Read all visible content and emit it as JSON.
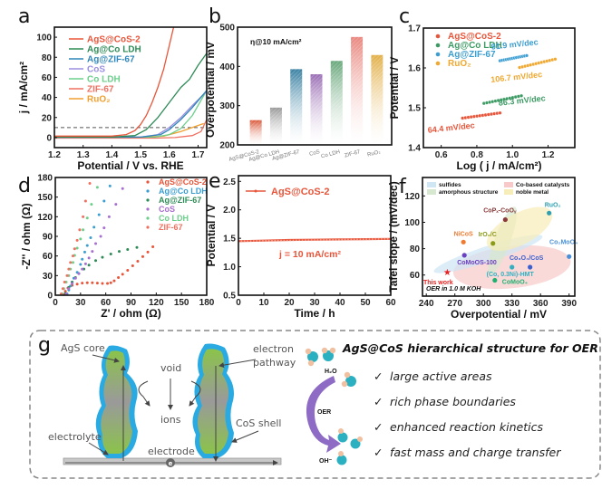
{
  "chart_data": [
    {
      "panel": "a",
      "type": "line",
      "xlabel": "Potential / V vs. RHE",
      "ylabel": "j / mA/cm²",
      "xlim": [
        1.2,
        1.73
      ],
      "ylim": [
        -10,
        110
      ],
      "xticks": [
        1.2,
        1.3,
        1.4,
        1.5,
        1.6,
        1.7
      ],
      "yticks": [
        0,
        20,
        40,
        60,
        80,
        100
      ],
      "reference_line": {
        "y": 10,
        "style": "dashed"
      },
      "series": [
        {
          "name": "AgS@CoS-2",
          "color": "#e8553a",
          "points": [
            [
              1.2,
              1.5
            ],
            [
              1.3,
              1.5
            ],
            [
              1.4,
              1.5
            ],
            [
              1.45,
              3
            ],
            [
              1.48,
              7
            ],
            [
              1.5,
              13
            ],
            [
              1.52,
              22
            ],
            [
              1.54,
              35
            ],
            [
              1.56,
              50
            ],
            [
              1.58,
              68
            ],
            [
              1.6,
              92
            ],
            [
              1.615,
              110
            ]
          ]
        },
        {
          "name": "Ag@Co LDH",
          "color": "#2e8b57",
          "points": [
            [
              1.2,
              0.5
            ],
            [
              1.4,
              0.5
            ],
            [
              1.48,
              2
            ],
            [
              1.52,
              8
            ],
            [
              1.56,
              20
            ],
            [
              1.6,
              35
            ],
            [
              1.64,
              50
            ],
            [
              1.67,
              58
            ],
            [
              1.7,
              72
            ],
            [
              1.73,
              84
            ]
          ]
        },
        {
          "name": "Ag@ZIF-67",
          "color": "#2f86b8",
          "points": [
            [
              1.2,
              0.3
            ],
            [
              1.5,
              0.5
            ],
            [
              1.57,
              3
            ],
            [
              1.6,
              8
            ],
            [
              1.64,
              18
            ],
            [
              1.68,
              30
            ],
            [
              1.73,
              47
            ]
          ]
        },
        {
          "name": "CoS",
          "color": "#9a8fe0",
          "points": [
            [
              1.2,
              0.3
            ],
            [
              1.5,
              0.5
            ],
            [
              1.56,
              3
            ],
            [
              1.6,
              10
            ],
            [
              1.64,
              20
            ],
            [
              1.68,
              32
            ],
            [
              1.73,
              46
            ]
          ]
        },
        {
          "name": "Co LDH",
          "color": "#6ccf8a",
          "points": [
            [
              1.2,
              0.3
            ],
            [
              1.55,
              0.5
            ],
            [
              1.6,
              3
            ],
            [
              1.64,
              9
            ],
            [
              1.68,
              22
            ],
            [
              1.73,
              47
            ]
          ]
        },
        {
          "name": "ZIF-67",
          "color": "#f07060",
          "points": [
            [
              1.2,
              -0.5
            ],
            [
              1.55,
              -0.5
            ],
            [
              1.62,
              0
            ],
            [
              1.68,
              2
            ],
            [
              1.71,
              6
            ],
            [
              1.73,
              18
            ]
          ]
        },
        {
          "name": "RuO₂",
          "color": "#f0a030",
          "points": [
            [
              1.2,
              0.2
            ],
            [
              1.5,
              0.3
            ],
            [
              1.58,
              1.5
            ],
            [
              1.64,
              6
            ],
            [
              1.68,
              10
            ],
            [
              1.72,
              14
            ]
          ]
        }
      ]
    },
    {
      "panel": "b",
      "type": "bar",
      "annotation": "η@10 mA/cm²",
      "ylabel": "Overpotential / mV",
      "ylim": [
        200,
        500
      ],
      "yticks": [
        200,
        300,
        400,
        500
      ],
      "categories": [
        "AgS@CoS-2",
        "Ag@Co LDH",
        "Ag@ZIF-67",
        "CoS",
        "Co LDH",
        "ZIF-67",
        "RuO₂"
      ],
      "values": [
        263,
        295,
        393,
        380,
        414,
        475,
        429
      ],
      "colors": [
        "#d9583a",
        "#999999",
        "#3b82a3",
        "#9b6fb5",
        "#6aa87c",
        "#e98880",
        "#e2b04a"
      ]
    },
    {
      "panel": "c",
      "type": "scatter",
      "xlabel": "Log ( j / mA/cm²)",
      "ylabel": "Potential / V",
      "xlim": [
        0.5,
        1.35
      ],
      "ylim": [
        1.4,
        1.7
      ],
      "xticks": [
        0.6,
        0.8,
        1.0,
        1.2
      ],
      "yticks": [
        1.4,
        1.5,
        1.6,
        1.7
      ],
      "series": [
        {
          "name": "AgS@CoS-2",
          "color": "#e8553a",
          "x_range": [
            0.72,
            0.93
          ],
          "y_range": [
            1.474,
            1.487
          ],
          "slope_label": "64.4 mV/dec"
        },
        {
          "name": "Ag@Co LDH",
          "color": "#3c9a63",
          "x_range": [
            0.84,
            1.05
          ],
          "y_range": [
            1.511,
            1.53
          ],
          "slope_label": "86.3 mV/dec"
        },
        {
          "name": "Ag@ZIF-67",
          "color": "#3b9dd0",
          "x_range": [
            0.93,
            1.08
          ],
          "y_range": [
            1.618,
            1.631
          ],
          "slope_label": "91.9 mV/dec"
        },
        {
          "name": "RuO₂",
          "color": "#f0a830",
          "x_range": [
            1.04,
            1.24
          ],
          "y_range": [
            1.601,
            1.622
          ],
          "slope_label": "106.7 mV/dec"
        }
      ]
    },
    {
      "panel": "d",
      "type": "scatter",
      "xlabel": "Z' / ohm (Ω)",
      "ylabel": "-Z'' / ohm (Ω)",
      "xlim": [
        0,
        180
      ],
      "ylim": [
        0,
        180
      ],
      "xticks": [
        0,
        30,
        60,
        90,
        120,
        150,
        180
      ],
      "yticks": [
        0,
        30,
        60,
        90,
        120,
        150,
        180
      ],
      "series": [
        {
          "name": "AgS@CoS-2",
          "color": "#e8553a",
          "points": [
            [
              10,
              1
            ],
            [
              12,
              6
            ],
            [
              15,
              11
            ],
            [
              20,
              15
            ],
            [
              26,
              17
            ],
            [
              32,
              18.5
            ],
            [
              38,
              19
            ],
            [
              44,
              19
            ],
            [
              50,
              18.5
            ],
            [
              56,
              18
            ],
            [
              62,
              18
            ],
            [
              66,
              19
            ],
            [
              70,
              22
            ],
            [
              75,
              27
            ],
            [
              80,
              32
            ],
            [
              86,
              38
            ],
            [
              92,
              45
            ],
            [
              98,
              52
            ],
            [
              104,
              59
            ],
            [
              110,
              66
            ],
            [
              116,
              74
            ]
          ]
        },
        {
          "name": "Ag@Co LDH",
          "color": "#3b9dd0",
          "points": [
            [
              14,
              2
            ],
            [
              16,
              8
            ],
            [
              18,
              14
            ],
            [
              20,
              20
            ],
            [
              22,
              26
            ],
            [
              26,
              35
            ],
            [
              30,
              47
            ],
            [
              32,
              55
            ],
            [
              35,
              66
            ],
            [
              38,
              76
            ],
            [
              42,
              88
            ],
            [
              46,
              104
            ],
            [
              52,
              123
            ],
            [
              58,
              144
            ],
            [
              65,
              167
            ]
          ]
        },
        {
          "name": "Ag@ZIF-67",
          "color": "#2e8b57",
          "points": [
            [
              12,
              3
            ],
            [
              16,
              12
            ],
            [
              20,
              20
            ],
            [
              24,
              27
            ],
            [
              28,
              33
            ],
            [
              34,
              40
            ],
            [
              40,
              46
            ],
            [
              48,
              53
            ],
            [
              56,
              58
            ],
            [
              66,
              63
            ],
            [
              76,
              67
            ],
            [
              86,
              70
            ],
            [
              97,
              73
            ]
          ]
        },
        {
          "name": "CoS",
          "color": "#a86fd0",
          "points": [
            [
              13,
              2
            ],
            [
              16,
              10
            ],
            [
              20,
              18
            ],
            [
              24,
              26
            ],
            [
              28,
              33
            ],
            [
              32,
              40
            ],
            [
              36,
              48
            ],
            [
              40,
              57
            ],
            [
              44,
              67
            ],
            [
              48,
              79
            ],
            [
              54,
              90
            ],
            [
              58,
              103
            ],
            [
              64,
              120
            ],
            [
              72,
              139
            ],
            [
              80,
              163
            ]
          ]
        },
        {
          "name": "Co LDH",
          "color": "#6ccf8a",
          "points": [
            [
              8,
              2
            ],
            [
              10,
              10
            ],
            [
              13,
              20
            ],
            [
              16,
              30
            ],
            [
              18,
              40
            ],
            [
              21,
              50
            ],
            [
              23,
              61
            ],
            [
              26,
              72
            ],
            [
              30,
              86
            ],
            [
              33,
              100
            ],
            [
              38,
              118
            ],
            [
              43,
              139
            ],
            [
              50,
              165
            ]
          ]
        },
        {
          "name": "ZIF-67",
          "color": "#f07060",
          "points": [
            [
              7,
              2
            ],
            [
              9,
              10
            ],
            [
              11,
              20
            ],
            [
              14,
              30
            ],
            [
              16,
              40
            ],
            [
              18,
              50
            ],
            [
              21,
              60
            ],
            [
              23,
              71
            ],
            [
              26,
              84
            ],
            [
              29,
              100
            ],
            [
              33,
              120
            ],
            [
              36,
              144
            ],
            [
              41,
              171
            ]
          ]
        }
      ]
    },
    {
      "panel": "e",
      "type": "line",
      "xlabel": "Time / h",
      "ylabel": "Potential / V",
      "xlim": [
        0,
        60
      ],
      "ylim": [
        0.5,
        2.6
      ],
      "xticks": [
        0,
        10,
        20,
        30,
        40,
        50,
        60
      ],
      "yticks": [
        0.5,
        1.0,
        1.5,
        2.0,
        2.5
      ],
      "annotation": "j = 10 mA/cm²",
      "series": [
        {
          "name": "AgS@CoS-2",
          "color": "#e8553a",
          "points": [
            [
              0,
              1.45
            ],
            [
              10,
              1.46
            ],
            [
              20,
              1.47
            ],
            [
              30,
              1.475
            ],
            [
              40,
              1.48
            ],
            [
              50,
              1.485
            ],
            [
              60,
              1.49
            ]
          ]
        }
      ]
    },
    {
      "panel": "f",
      "type": "scatter",
      "xlabel": "Overpotential / mV",
      "ylabel": "Tafel slope / (mV/dec)",
      "xlim": [
        236,
        396
      ],
      "ylim": [
        44,
        134
      ],
      "xticks": [
        240,
        270,
        300,
        330,
        360,
        390
      ],
      "yticks": [
        60,
        80,
        100,
        120
      ],
      "annotation": "OER in 1.0 M KOH",
      "legend": [
        {
          "label": "sulfides",
          "color": "#cfe6f5"
        },
        {
          "label": "amorphous structure",
          "color": "#d6e8cf"
        },
        {
          "label": "Co-based catalysts",
          "color": "#f8c9c9"
        },
        {
          "label": "noble metal",
          "color": "#f7edb8"
        }
      ],
      "points": [
        {
          "label": "This work",
          "x": 262,
          "y": 62,
          "color": "#e82020",
          "marker": "star"
        },
        {
          "label": "NiCoS",
          "x": 279,
          "y": 85,
          "color": "#f07a30"
        },
        {
          "label": "CoMoOS-100",
          "x": 280,
          "y": 75,
          "color": "#6a3fc0"
        },
        {
          "label": "IrO₂/C",
          "x": 310,
          "y": 84,
          "color": "#8a9a1a"
        },
        {
          "label": "CoPₓ-CoOᵧ",
          "x": 323,
          "y": 102,
          "color": "#8a3a3a"
        },
        {
          "label": "CoMoO₄",
          "x": 312,
          "y": 56,
          "color": "#20b070"
        },
        {
          "label": "(Co, 0.3Ni)-HMT",
          "x": 330,
          "y": 66,
          "color": "#30b0c0"
        },
        {
          "label": "Co₃O₄/CoS",
          "x": 349,
          "y": 66,
          "color": "#3a60d0"
        },
        {
          "label": "RuO₂",
          "x": 369,
          "y": 107,
          "color": "#30a0b0"
        },
        {
          "label": "Co₂MoO₄",
          "x": 390,
          "y": 74,
          "color": "#4a90d8"
        }
      ]
    }
  ],
  "panel_labels": [
    "a",
    "b",
    "c",
    "d",
    "e",
    "f",
    "g"
  ],
  "schematic": {
    "labels": {
      "agS_core": "AgS core",
      "void": "void",
      "ions": "ions",
      "electron_pathway_1": "electron",
      "electron_pathway_2": "pathway",
      "cos_shell": "CoS shell",
      "electrolyte": "electrolyte",
      "electrode": "electrode",
      "electron_symbol": "e",
      "h2o": "H₂O",
      "oer": "OER",
      "oh": "OH⁻"
    },
    "title": "AgS@CoS hierarchical structure for OER",
    "check": "✓",
    "features": [
      "large active areas",
      "rich phase boundaries",
      "enhanced reaction kinetics",
      "fast mass and charge transfer"
    ]
  }
}
